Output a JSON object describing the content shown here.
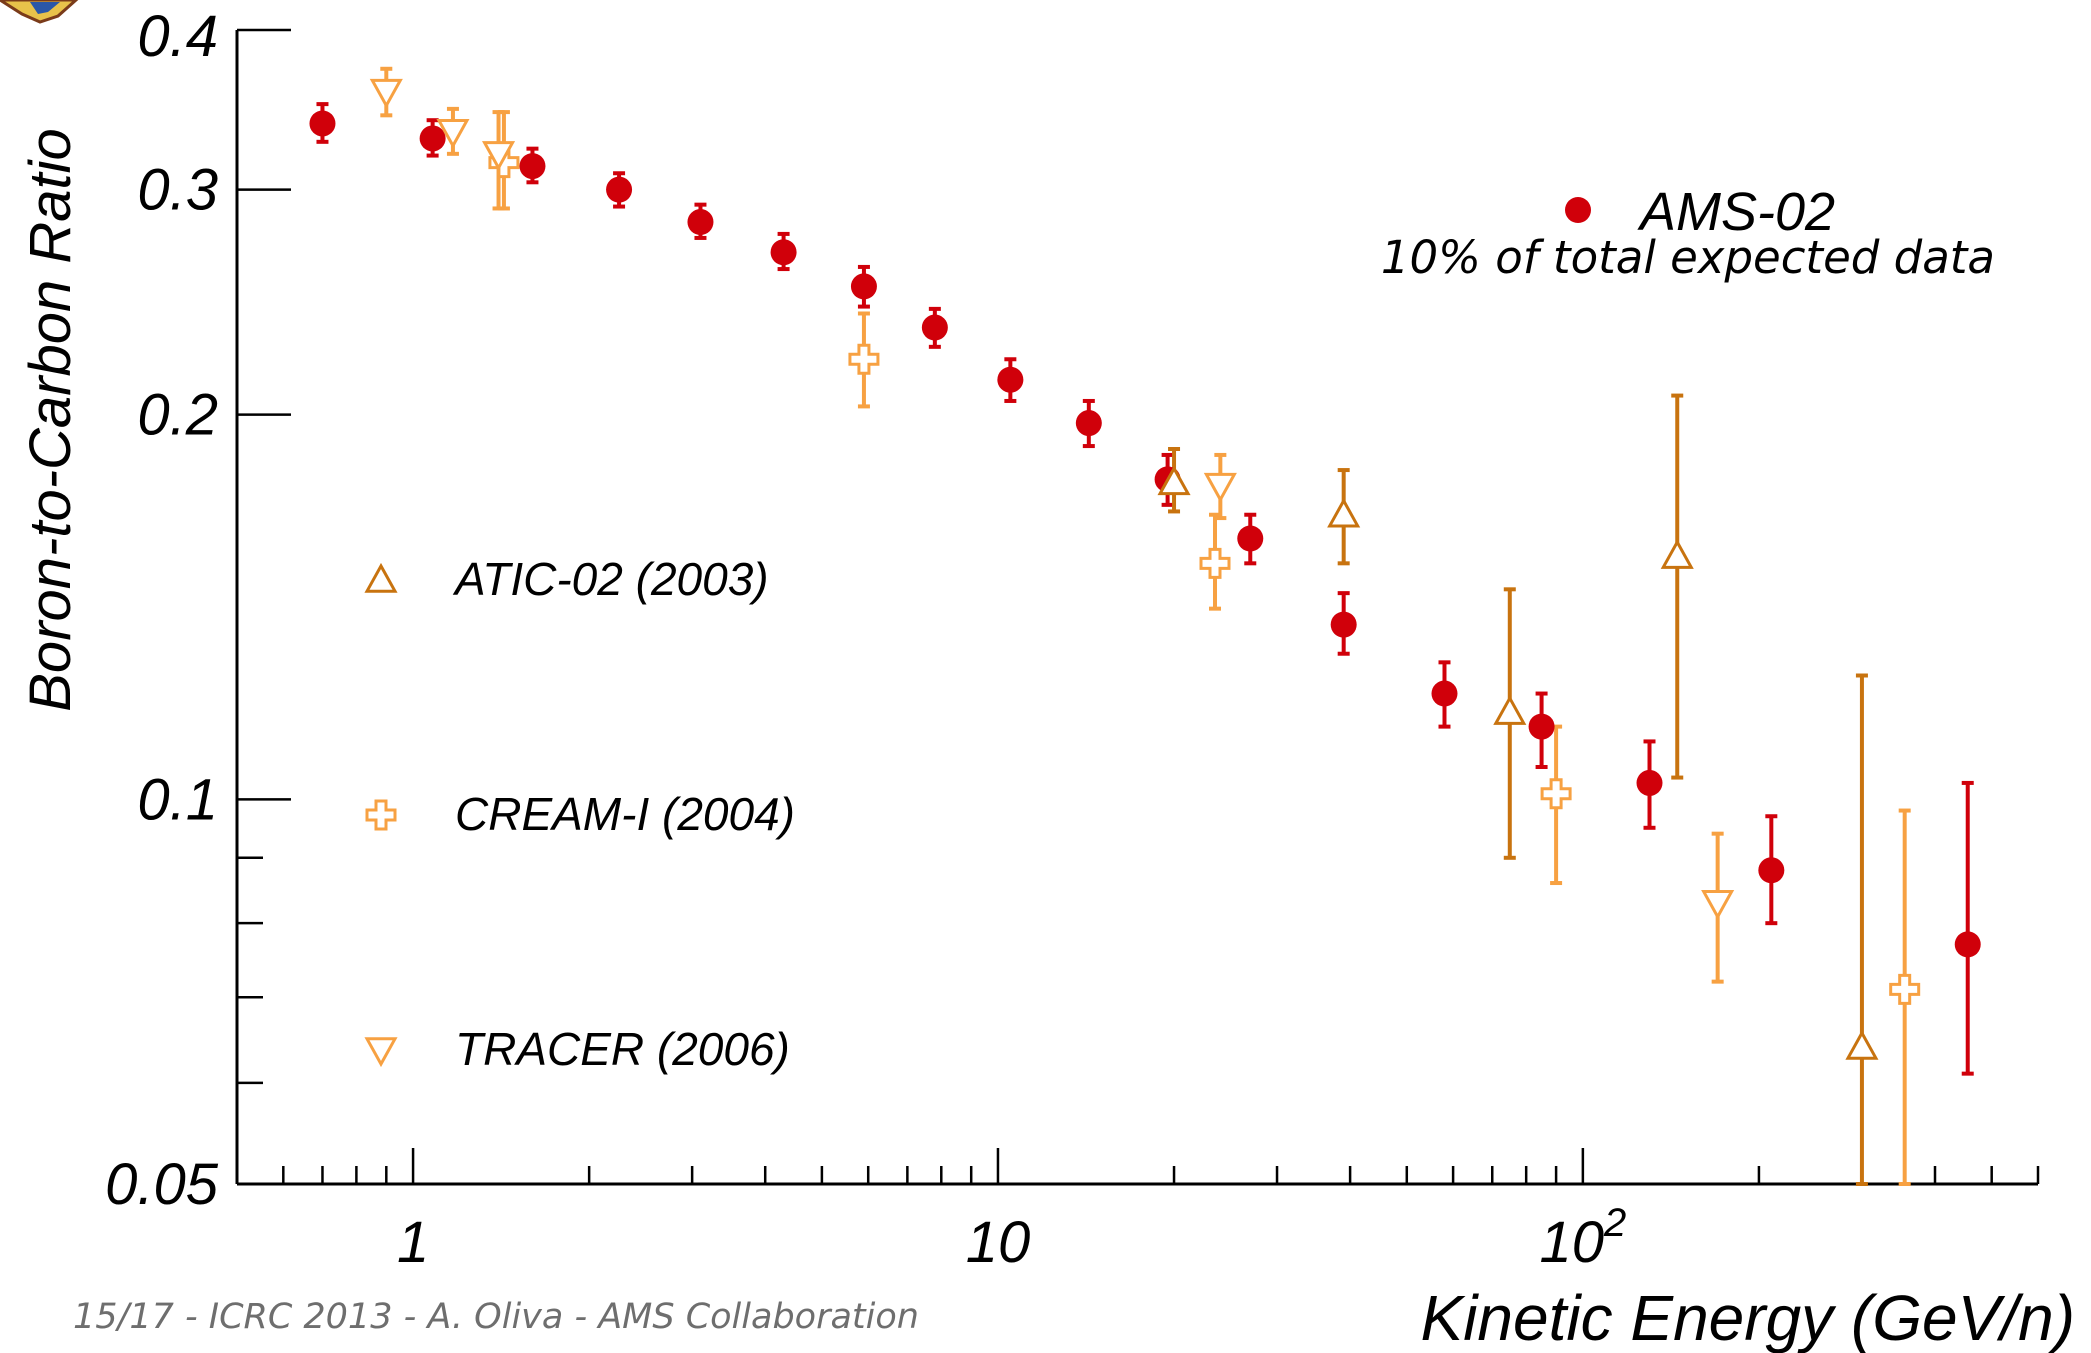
{
  "footer": "15/17 - ICRC 2013 - A. Oliva - AMS Collaboration",
  "annotation": "10% of total expected data",
  "colors": {
    "ams": "#d0000a",
    "atic": "#c8730f",
    "cream": "#f7a142",
    "tracer": "#f7a142",
    "axis": "#000000"
  },
  "chart_data": {
    "type": "scatter",
    "xlabel": "Kinetic Energy (GeV/n)",
    "ylabel": "Boron-to-Carbon Ratio",
    "xscale": "log",
    "yscale": "log",
    "xlim": [
      0.5,
      600
    ],
    "ylim": [
      0.05,
      0.4
    ],
    "x_tick_labels": [
      {
        "value": 1,
        "label": "1"
      },
      {
        "value": 10,
        "label": "10"
      },
      {
        "value": 100,
        "label": "10",
        "sup": "2"
      }
    ],
    "y_tick_labels": [
      {
        "value": 0.1,
        "label": "0.1"
      },
      {
        "value": 0.2,
        "label": "0.2"
      },
      {
        "value": 0.3,
        "label": "0.3"
      },
      {
        "value": 0.4,
        "label": "0.4"
      },
      {
        "value": 0.05,
        "label": "0.05"
      }
    ],
    "series": [
      {
        "name": "AMS-02",
        "marker": "filled-circle",
        "color": "#d0000a",
        "legend_position": "top-right",
        "points": [
          {
            "x": 0.7,
            "y": 0.338,
            "lo": 0.327,
            "hi": 0.35
          },
          {
            "x": 1.08,
            "y": 0.329,
            "lo": 0.319,
            "hi": 0.34
          },
          {
            "x": 1.6,
            "y": 0.313,
            "lo": 0.304,
            "hi": 0.323
          },
          {
            "x": 2.25,
            "y": 0.3,
            "lo": 0.291,
            "hi": 0.309
          },
          {
            "x": 3.1,
            "y": 0.283,
            "lo": 0.275,
            "hi": 0.292
          },
          {
            "x": 4.3,
            "y": 0.268,
            "lo": 0.26,
            "hi": 0.277
          },
          {
            "x": 5.9,
            "y": 0.252,
            "lo": 0.243,
            "hi": 0.261
          },
          {
            "x": 7.8,
            "y": 0.234,
            "lo": 0.226,
            "hi": 0.242
          },
          {
            "x": 10.5,
            "y": 0.213,
            "lo": 0.205,
            "hi": 0.221
          },
          {
            "x": 14.3,
            "y": 0.197,
            "lo": 0.189,
            "hi": 0.205
          },
          {
            "x": 19.5,
            "y": 0.178,
            "lo": 0.17,
            "hi": 0.186
          },
          {
            "x": 27.0,
            "y": 0.16,
            "lo": 0.153,
            "hi": 0.167
          },
          {
            "x": 39.0,
            "y": 0.137,
            "lo": 0.13,
            "hi": 0.145
          },
          {
            "x": 58.0,
            "y": 0.121,
            "lo": 0.114,
            "hi": 0.128
          },
          {
            "x": 85.0,
            "y": 0.114,
            "lo": 0.106,
            "hi": 0.121
          },
          {
            "x": 130.0,
            "y": 0.103,
            "lo": 0.095,
            "hi": 0.111
          },
          {
            "x": 210.0,
            "y": 0.088,
            "lo": 0.08,
            "hi": 0.097
          },
          {
            "x": 455.0,
            "y": 0.077,
            "lo": 0.061,
            "hi": 0.103
          }
        ]
      },
      {
        "name": "ATIC-02 (2003)",
        "marker": "open-triangle-up",
        "color": "#c8730f",
        "points": [
          {
            "x": 20.0,
            "y": 0.177,
            "lo": 0.168,
            "hi": 0.188
          },
          {
            "x": 39.0,
            "y": 0.167,
            "lo": 0.153,
            "hi": 0.181
          },
          {
            "x": 75.0,
            "y": 0.117,
            "lo": 0.09,
            "hi": 0.146
          },
          {
            "x": 145.0,
            "y": 0.155,
            "lo": 0.104,
            "hi": 0.207
          },
          {
            "x": 300.0,
            "y": 0.064,
            "lo": 0.05,
            "hi": 0.125
          }
        ]
      },
      {
        "name": "CREAM-I (2004)",
        "marker": "open-cross",
        "color": "#f7a142",
        "points": [
          {
            "x": 1.43,
            "y": 0.315,
            "lo": 0.29,
            "hi": 0.345
          },
          {
            "x": 5.9,
            "y": 0.221,
            "lo": 0.203,
            "hi": 0.24
          },
          {
            "x": 23.5,
            "y": 0.153,
            "lo": 0.141,
            "hi": 0.167
          },
          {
            "x": 90.0,
            "y": 0.101,
            "lo": 0.086,
            "hi": 0.114
          },
          {
            "x": 355.0,
            "y": 0.071,
            "lo": 0.05,
            "hi": 0.098
          }
        ]
      },
      {
        "name": "TRACER (2006)",
        "marker": "open-triangle-down",
        "color": "#f7a142",
        "points": [
          {
            "x": 0.9,
            "y": 0.358,
            "lo": 0.343,
            "hi": 0.373
          },
          {
            "x": 1.17,
            "y": 0.333,
            "lo": 0.32,
            "hi": 0.347
          },
          {
            "x": 1.4,
            "y": 0.32,
            "lo": 0.29,
            "hi": 0.345
          },
          {
            "x": 24.0,
            "y": 0.176,
            "lo": 0.166,
            "hi": 0.186
          },
          {
            "x": 170.0,
            "y": 0.083,
            "lo": 0.072,
            "hi": 0.094
          }
        ]
      }
    ]
  }
}
